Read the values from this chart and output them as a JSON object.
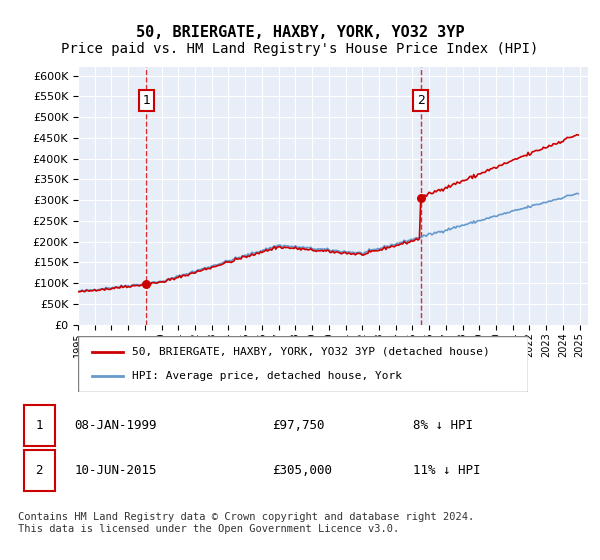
{
  "title": "50, BRIERGATE, HAXBY, YORK, YO32 3YP",
  "subtitle": "Price paid vs. HM Land Registry's House Price Index (HPI)",
  "ylabel_ticks": [
    "£0",
    "£50K",
    "£100K",
    "£150K",
    "£200K",
    "£250K",
    "£300K",
    "£350K",
    "£400K",
    "£450K",
    "£500K",
    "£550K",
    "£600K"
  ],
  "ylim": [
    0,
    620000
  ],
  "yticks": [
    0,
    50000,
    100000,
    150000,
    200000,
    250000,
    300000,
    350000,
    400000,
    450000,
    500000,
    550000,
    600000
  ],
  "xstart_year": 1995,
  "xend_year": 2025,
  "sale1_date": "08-JAN-1999",
  "sale1_price": 97750,
  "sale1_label": "1",
  "sale2_date": "10-JUN-2015",
  "sale2_price": 305000,
  "sale2_label": "2",
  "hpi_color": "#6699cc",
  "sale_color": "#cc0000",
  "bg_plot_color": "#e8eef8",
  "grid_color": "#ffffff",
  "annotation_box_color": "#cc0000",
  "legend_label1": "50, BRIERGATE, HAXBY, YORK, YO32 3YP (detached house)",
  "legend_label2": "HPI: Average price, detached house, York",
  "table_row1": [
    "1",
    "08-JAN-1999",
    "£97,750",
    "8% ↓ HPI"
  ],
  "table_row2": [
    "2",
    "10-JUN-2015",
    "£305,000",
    "11% ↓ HPI"
  ],
  "footer": "Contains HM Land Registry data © Crown copyright and database right 2024.\nThis data is licensed under the Open Government Licence v3.0.",
  "title_fontsize": 11,
  "subtitle_fontsize": 10
}
